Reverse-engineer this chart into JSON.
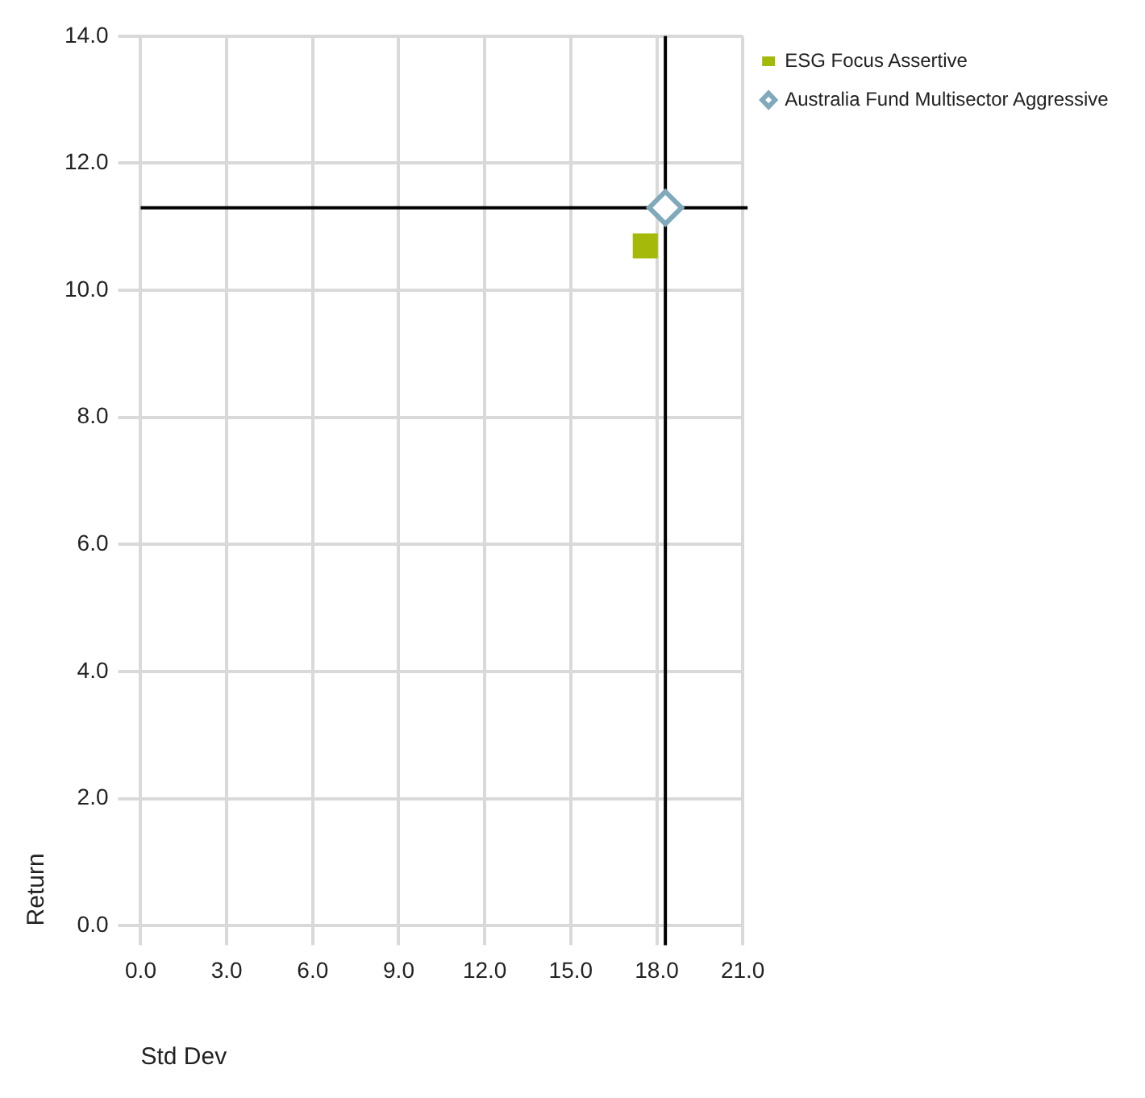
{
  "chart_data": {
    "type": "scatter",
    "xlabel": "Std Dev",
    "ylabel": "Return",
    "xlim": [
      0,
      21
    ],
    "xticks": [
      {
        "value": 0,
        "label": "0.0"
      },
      {
        "value": 3,
        "label": "3.0"
      },
      {
        "value": 6,
        "label": "6.0"
      },
      {
        "value": 9,
        "label": "9.0"
      },
      {
        "value": 12,
        "label": "12.0"
      },
      {
        "value": 15,
        "label": "15.0"
      },
      {
        "value": 18,
        "label": "18.0"
      },
      {
        "value": 21,
        "label": "21.0"
      }
    ],
    "ylim": [
      0,
      14
    ],
    "yticks": [
      {
        "value": 0,
        "label": "0.0"
      },
      {
        "value": 2,
        "label": "2.0"
      },
      {
        "value": 4,
        "label": "4.0"
      },
      {
        "value": 6,
        "label": "6.0"
      },
      {
        "value": 8,
        "label": "8.0"
      },
      {
        "value": 10,
        "label": "10.0"
      },
      {
        "value": 12,
        "label": "12.0"
      },
      {
        "value": 14,
        "label": "14.0"
      }
    ],
    "grid": true,
    "legend": "top right",
    "series": [
      {
        "name": "ESG Focus Assertive",
        "color": "#a5b90b",
        "marker": "square",
        "x": [
          17.6
        ],
        "values": [
          10.7
        ]
      },
      {
        "name": "Australia Fund Multisector Aggressive",
        "color": "#80a9bb",
        "marker": "diamond",
        "x": [
          18.3
        ],
        "values": [
          11.3
        ]
      }
    ],
    "ref_lines": [
      {
        "axis": "x",
        "value": 18.3,
        "color": "#000000"
      },
      {
        "axis": "y",
        "value": 11.3,
        "color": "#000000"
      }
    ]
  }
}
